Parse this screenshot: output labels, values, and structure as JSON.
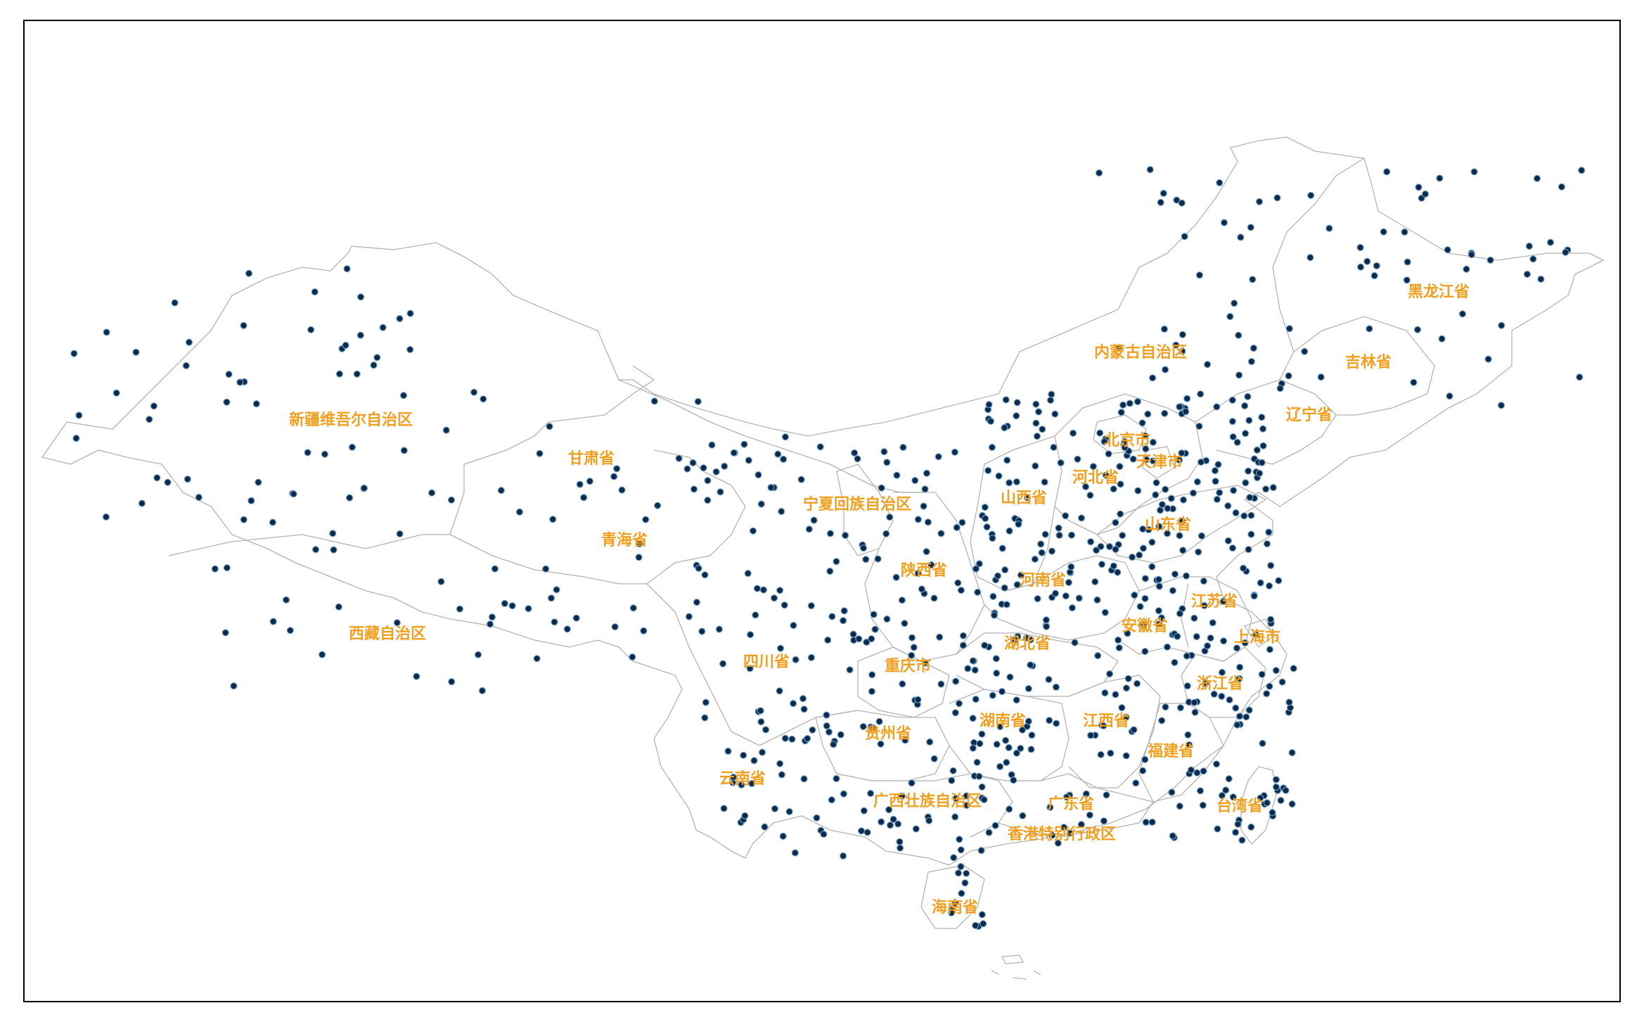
{
  "map": {
    "province_labels": [
      {
        "key": "xinjiang",
        "text": "新疆维吾尔自治区"
      },
      {
        "key": "neimenggu",
        "text": "内蒙古自治区"
      },
      {
        "key": "heilongjiang",
        "text": "黑龙江省"
      },
      {
        "key": "jilin",
        "text": "吉林省"
      },
      {
        "key": "liaoning",
        "text": "辽宁省"
      },
      {
        "key": "beijing",
        "text": "北京市"
      },
      {
        "key": "tianjin",
        "text": "天津市"
      },
      {
        "key": "hebei",
        "text": "河北省"
      },
      {
        "key": "shanxi",
        "text": "山西省"
      },
      {
        "key": "shandong",
        "text": "山东省"
      },
      {
        "key": "gansu",
        "text": "甘肃省"
      },
      {
        "key": "ningxia",
        "text": "宁夏回族自治区"
      },
      {
        "key": "qinghai",
        "text": "青海省"
      },
      {
        "key": "shaanxi",
        "text": "陕西省"
      },
      {
        "key": "henan",
        "text": "河南省"
      },
      {
        "key": "jiangsu",
        "text": "江苏省"
      },
      {
        "key": "anhui",
        "text": "安徽省"
      },
      {
        "key": "shanghai",
        "text": "上海市"
      },
      {
        "key": "xizang",
        "text": "西藏自治区"
      },
      {
        "key": "sichuan",
        "text": "四川省"
      },
      {
        "key": "chongqing",
        "text": "重庆市"
      },
      {
        "key": "hubei",
        "text": "湖北省"
      },
      {
        "key": "zhejiang",
        "text": "浙江省"
      },
      {
        "key": "hunan",
        "text": "湖南省"
      },
      {
        "key": "jiangxi",
        "text": "江西省"
      },
      {
        "key": "guizhou",
        "text": "贵州省"
      },
      {
        "key": "fujian",
        "text": "福建省"
      },
      {
        "key": "yunnan",
        "text": "云南省"
      },
      {
        "key": "guangxi",
        "text": "广西壮族自治区"
      },
      {
        "key": "guangdong",
        "text": "广东省"
      },
      {
        "key": "taiwan",
        "text": "台湾省"
      },
      {
        "key": "hongkong",
        "text": "香港特别行政区"
      },
      {
        "key": "hainan",
        "text": "海南省"
      }
    ],
    "colors": {
      "label": "#F0A020",
      "station_fill": "#0d2a4a",
      "station_stroke": "#6fa0c8",
      "boundary": "#b3b3b3",
      "frame": "#000000"
    }
  }
}
